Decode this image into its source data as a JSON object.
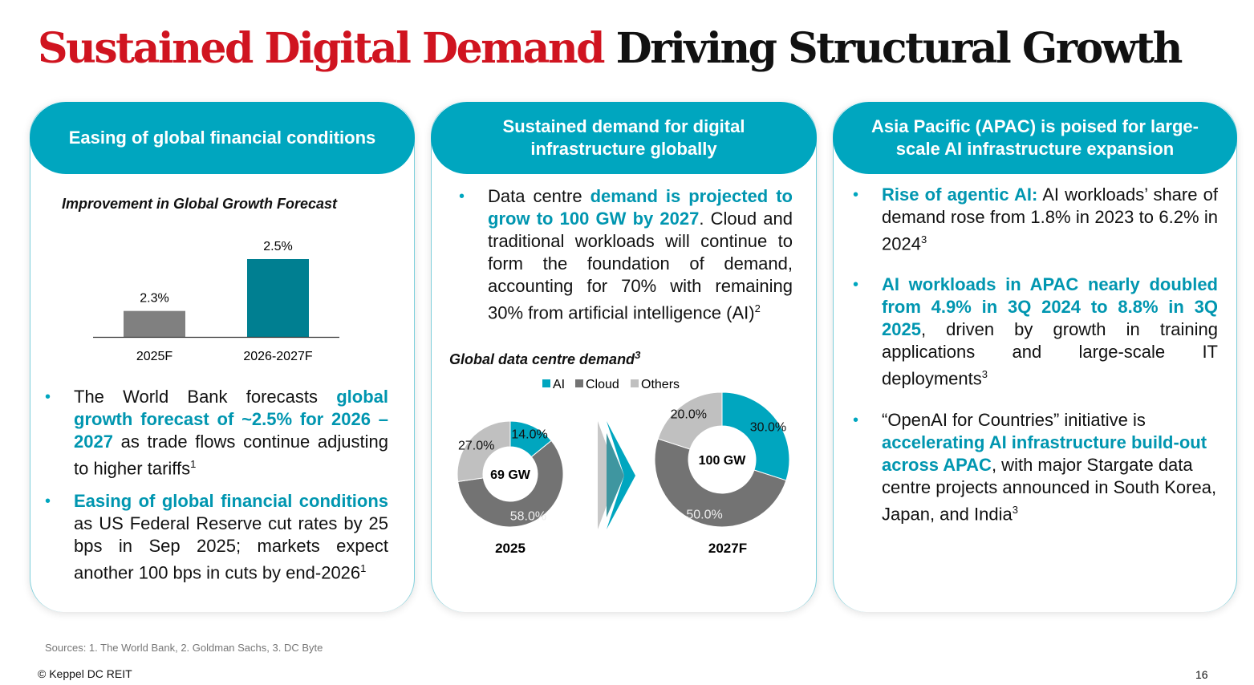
{
  "title": {
    "red": "Sustained Digital Demand",
    "black": "Driving Structural Growth"
  },
  "colors": {
    "teal": "#00a6bf",
    "red": "#d01420",
    "cloud": "#737373",
    "others": "#c0c0c0",
    "bar2025": "#808080",
    "bar2027": "#007f91"
  },
  "cards": [
    {
      "header": "Easing of global financial conditions",
      "bullets": [
        [
          {
            "t": "The World Bank forecasts "
          },
          {
            "t": "global growth forecast of ~2.5% for 2026 – 2027",
            "h": true
          },
          {
            "t": " as trade flows continue adjusting to higher tariffs"
          },
          {
            "t": "1",
            "s": true
          }
        ],
        [
          {
            "t": "Easing of global financial conditions",
            "h": true
          },
          {
            "t": " as US Federal Reserve cut rates by 25 bps in Sep 2025; markets expect another 100 bps in cuts by end-2026"
          },
          {
            "t": "1",
            "s": true
          }
        ]
      ]
    },
    {
      "header": "Sustained demand for digital infrastructure globally",
      "bullets": [
        [
          {
            "t": "Data centre "
          },
          {
            "t": "demand is projected to grow to 100 GW by 2027",
            "h": true
          },
          {
            "t": ". Cloud and traditional workloads will continue to form the foundation of demand, accounting for 70% with remaining 30% from artificial intelligence (AI)"
          },
          {
            "t": "2",
            "s": true
          }
        ]
      ]
    },
    {
      "header": "Asia Pacific (APAC) is poised for large-scale AI infrastructure expansion",
      "bullets": [
        [
          {
            "t": "Rise of agentic AI:",
            "h": true
          },
          {
            "t": " AI workloads’ share of demand rose from 1.8% in 2023 to 6.2% in 2024"
          },
          {
            "t": "3",
            "s": true
          }
        ],
        [
          {
            "t": "AI workloads in APAC nearly doubled from 4.9% in 3Q 2024 to 8.8% in 3Q 2025",
            "h": true
          },
          {
            "t": ", driven by growth in training applications and large-scale IT deployments"
          },
          {
            "t": "3",
            "s": true
          }
        ],
        [
          {
            "t": "“OpenAI for Countries” initiative is "
          },
          {
            "t": "accelerating AI infrastructure build-out across APAC",
            "h": true
          },
          {
            "t": ", with major Stargate data centre projects announced in South Korea, Japan, and India"
          },
          {
            "t": "3",
            "s": true
          }
        ]
      ]
    }
  ],
  "chart_data": [
    {
      "type": "bar",
      "title": "Improvement in Global Growth Forecast",
      "categories": [
        "2025F",
        "2026-2027F"
      ],
      "values": [
        2.3,
        2.5
      ],
      "labels": [
        "2.3%",
        "2.5%"
      ],
      "ylim": [
        2.2,
        2.5
      ]
    },
    {
      "type": "pie",
      "title": "Global data centre demand",
      "title_sup": "3",
      "legend": [
        "AI",
        "Cloud",
        "Others"
      ],
      "donuts": [
        {
          "label": "2025",
          "center": "69 GW",
          "values": [
            14.0,
            58.0,
            27.0
          ],
          "labels": [
            "14.0%",
            "58.0%",
            "27.0%"
          ]
        },
        {
          "label": "2027F",
          "center": "100 GW",
          "values": [
            30.0,
            50.0,
            20.0
          ],
          "labels": [
            "30.0%",
            "50.0%",
            "20.0%"
          ]
        }
      ]
    }
  ],
  "footer": {
    "sources": "Sources: 1. The World Bank, 2. Goldman Sachs, 3. DC Byte",
    "copyright": "© Keppel DC REIT",
    "page": "16"
  }
}
